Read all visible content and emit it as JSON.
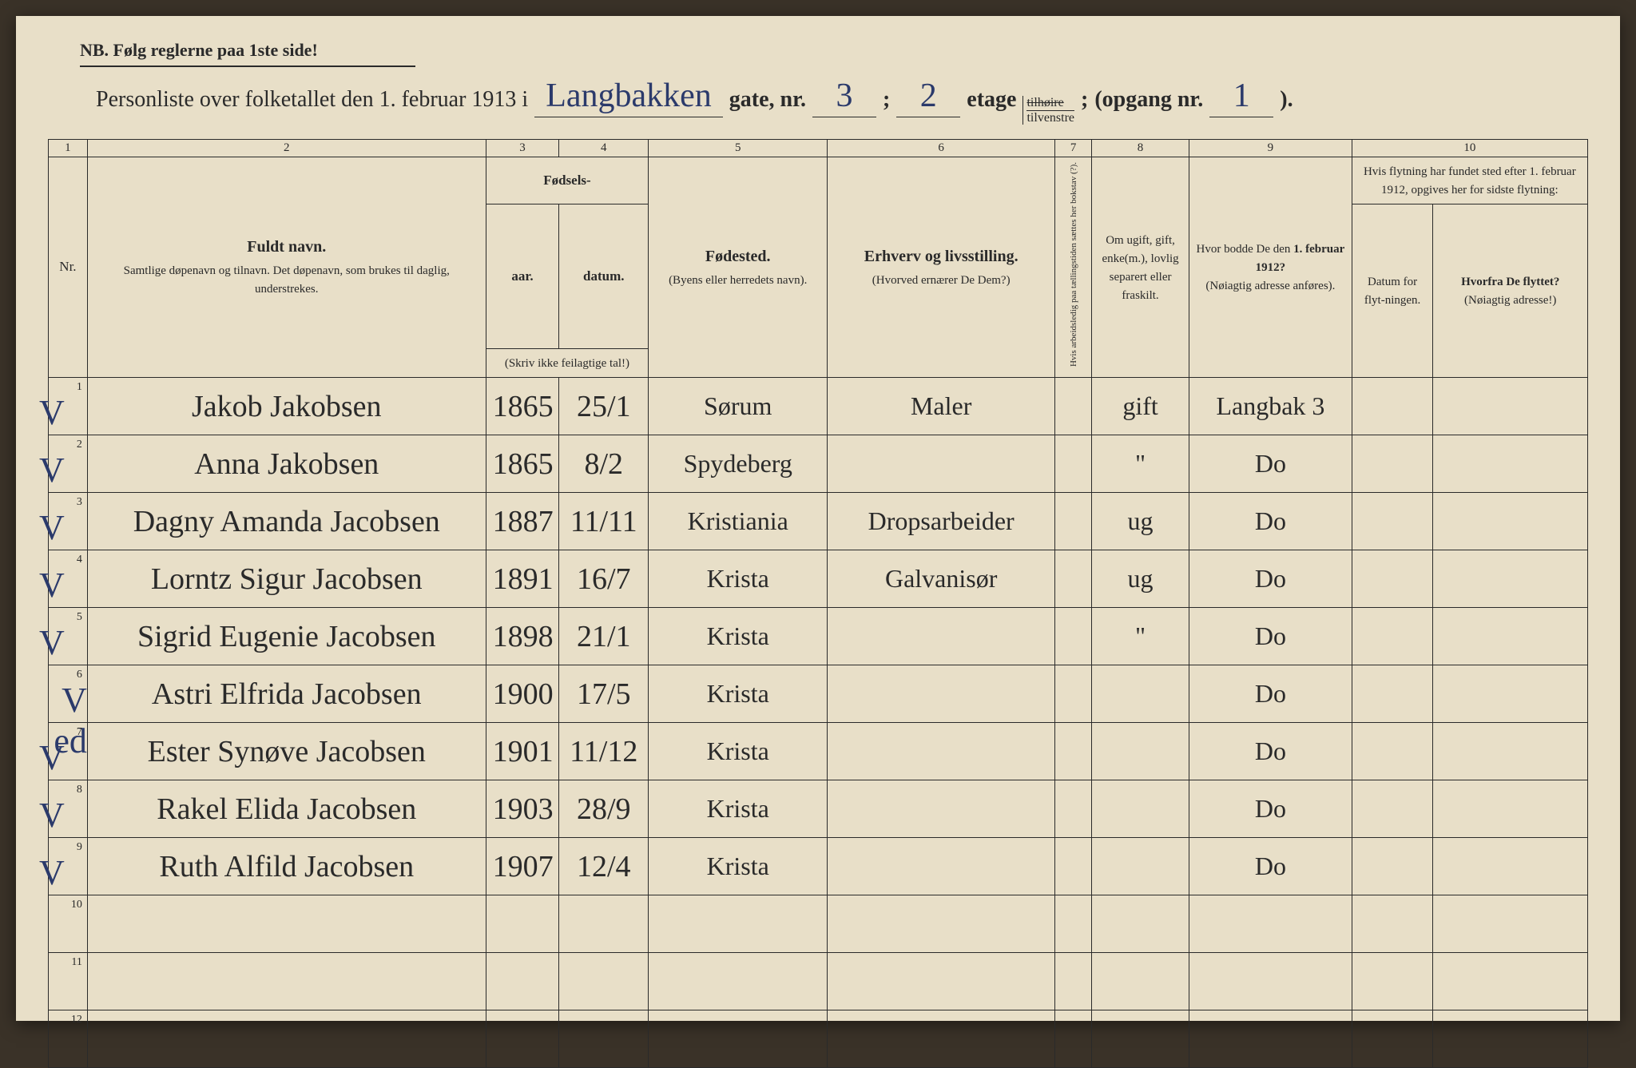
{
  "nb_text": "NB.  Følg reglerne paa 1ste side!",
  "header": {
    "prefix": "Personliste over folketallet den 1. februar 1913 i",
    "street_hand": "Langbakken",
    "gate_label": "gate, nr.",
    "gate_nr": "3",
    "semicolon": ";",
    "etage_nr": "2",
    "etage_label": "etage",
    "tilhoire": "tilhøire",
    "tilvenstre": "tilvenstre",
    "opgang_label": "(opgang nr.",
    "opgang_nr": "1",
    "closing": ")."
  },
  "colnums": [
    "1",
    "2",
    "3",
    "4",
    "5",
    "6",
    "7",
    "8",
    "9",
    "10"
  ],
  "headers": {
    "nr": "Nr.",
    "name_main": "Fuldt navn.",
    "name_sub": "Samtlige døpenavn og tilnavn. Det døpenavn, som brukes til daglig, understrekes.",
    "fodsels": "Fødsels-",
    "aar": "aar.",
    "datum": "datum.",
    "year_note": "(Skriv ikke feilagtige tal!)",
    "fodested_main": "Fødested.",
    "fodested_sub": "(Byens eller herredets navn).",
    "erhverv_main": "Erhverv og livsstilling.",
    "erhverv_sub": "(Hvorved ernærer De Dem?)",
    "col7": "Hvis arbeidsledig paa tællingstiden sættes her bokstav (?).",
    "col8": "Om ugift, gift, enke(m.), lovlig separert eller fraskilt.",
    "col9_main": "Hvor bodde De den 1. februar 1912?",
    "col9_sub": "(Nøiagtig adresse anføres).",
    "col10_top": "Hvis flytning har fundet sted efter 1. februar 1912, opgives her for sidste flytning:",
    "col10a": "Datum for flyt-ningen.",
    "col10b_main": "Hvorfra De flyttet?",
    "col10b_sub": "(Nøiagtig adresse!)"
  },
  "rows": [
    {
      "nr": "1",
      "check": "V",
      "name": "Jakob Jakobsen",
      "year": "1865",
      "date": "25/1",
      "place": "Sørum",
      "occ": "Maler",
      "c7": "",
      "c8": "gift",
      "c9": "Langbak 3",
      "c10a": "",
      "c10b": ""
    },
    {
      "nr": "2",
      "check": "V",
      "name": "Anna Jakobsen",
      "year": "1865",
      "date": "8/2",
      "place": "Spydeberg",
      "occ": "",
      "c7": "",
      "c8": "\"",
      "c9": "Do",
      "c10a": "",
      "c10b": ""
    },
    {
      "nr": "3",
      "check": "V",
      "name": "Dagny Amanda Jacobsen",
      "year": "1887",
      "date": "11/11",
      "place": "Kristiania",
      "occ": "Dropsarbeider",
      "c7": "",
      "c8": "ug",
      "c9": "Do",
      "c10a": "",
      "c10b": ""
    },
    {
      "nr": "4",
      "check": "V",
      "name": "Lorntz Sigur Jacobsen",
      "year": "1891",
      "date": "16/7",
      "place": "Krista",
      "occ": "Galvanisør",
      "c7": "",
      "c8": "ug",
      "c9": "Do",
      "c10a": "",
      "c10b": ""
    },
    {
      "nr": "5",
      "check": "V",
      "name": "Sigrid Eugenie Jacobsen",
      "year": "1898",
      "date": "21/1",
      "place": "Krista",
      "occ": "",
      "c7": "",
      "c8": "\"",
      "c9": "Do",
      "c10a": "",
      "c10b": ""
    },
    {
      "nr": "6",
      "check": "V ed",
      "name": "Astri Elfrida Jacobsen",
      "year": "1900",
      "date": "17/5",
      "place": "Krista",
      "occ": "",
      "c7": "",
      "c8": "",
      "c9": "Do",
      "c10a": "",
      "c10b": ""
    },
    {
      "nr": "7",
      "check": "V",
      "name": "Ester Synøve Jacobsen",
      "year": "1901",
      "date": "11/12",
      "place": "Krista",
      "occ": "",
      "c7": "",
      "c8": "",
      "c9": "Do",
      "c10a": "",
      "c10b": ""
    },
    {
      "nr": "8",
      "check": "V",
      "name": "Rakel Elida Jacobsen",
      "year": "1903",
      "date": "28/9",
      "place": "Krista",
      "occ": "",
      "c7": "",
      "c8": "",
      "c9": "Do",
      "c10a": "",
      "c10b": ""
    },
    {
      "nr": "9",
      "check": "V",
      "name": "Ruth Alfild Jacobsen",
      "year": "1907",
      "date": "12/4",
      "place": "Krista",
      "occ": "",
      "c7": "",
      "c8": "",
      "c9": "Do",
      "c10a": "",
      "c10b": ""
    },
    {
      "nr": "10",
      "check": "",
      "name": "",
      "year": "",
      "date": "",
      "place": "",
      "occ": "",
      "c7": "",
      "c8": "",
      "c9": "",
      "c10a": "",
      "c10b": ""
    },
    {
      "nr": "11",
      "check": "",
      "name": "",
      "year": "",
      "date": "",
      "place": "",
      "occ": "",
      "c7": "",
      "c8": "",
      "c9": "",
      "c10a": "",
      "c10b": ""
    },
    {
      "nr": "12",
      "check": "",
      "name": "",
      "year": "",
      "date": "",
      "place": "",
      "occ": "",
      "c7": "",
      "c8": "",
      "c9": "",
      "c10a": "",
      "c10b": ""
    }
  ],
  "colors": {
    "paper": "#e8dfc8",
    "ink_print": "#2a2a2a",
    "ink_hand": "#2b3a6b",
    "background": "#3a3228"
  }
}
